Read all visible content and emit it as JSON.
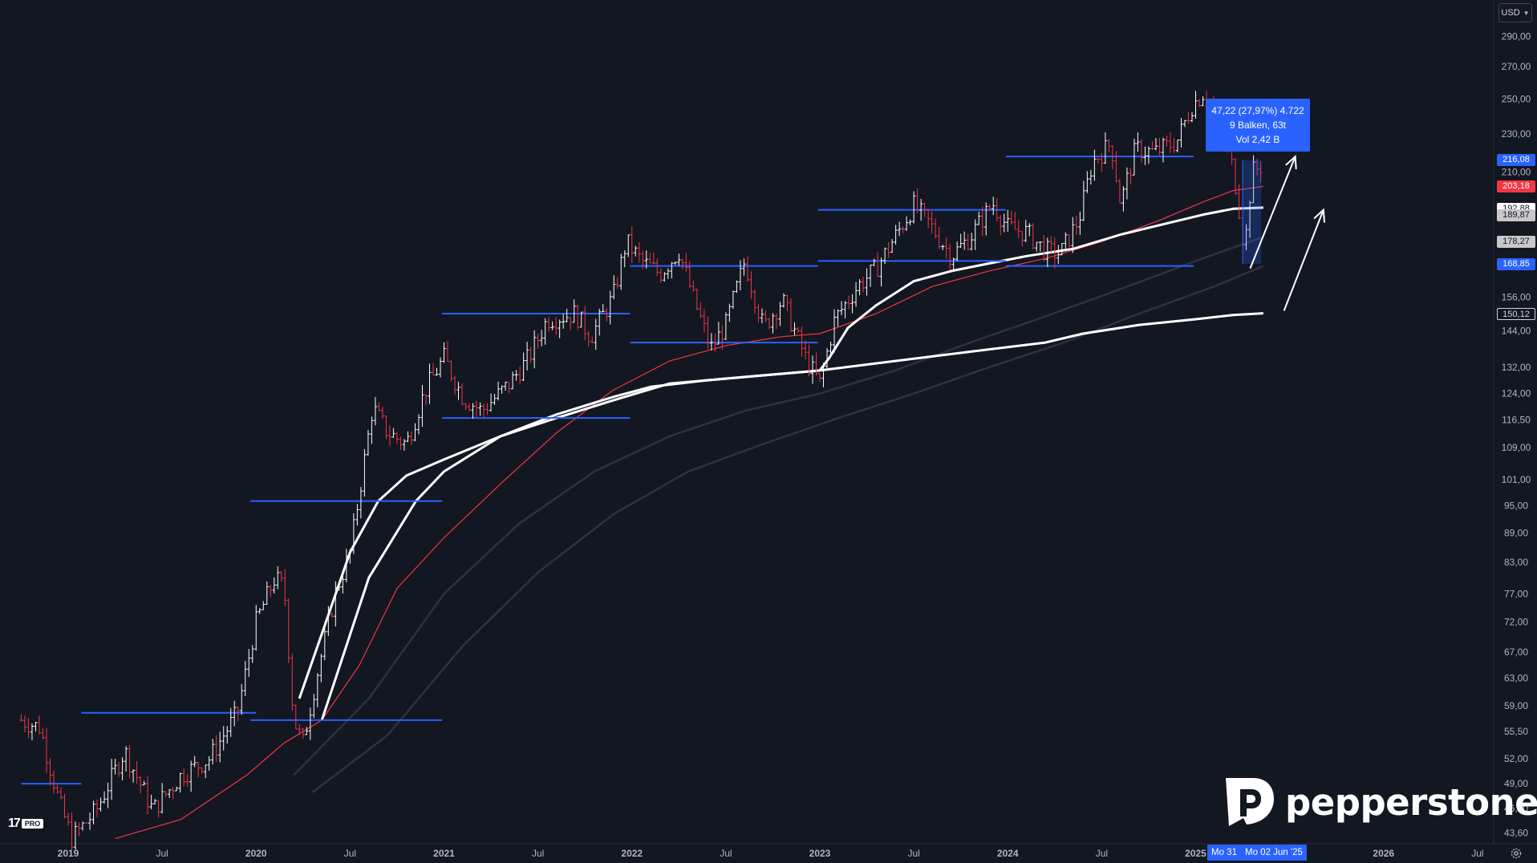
{
  "header": {
    "currency_label": "USD"
  },
  "price_tags": {
    "last": "216,08",
    "red": "203,18",
    "white1": "192,88",
    "white2": "189,87",
    "gray": "178,27",
    "blue_low": "168,85",
    "ema_long": "150,12"
  },
  "measure_box": {
    "line1": "47,22 (27,97%) 4.722",
    "line2": "9 Balken, 63t",
    "line3": "Vol 2,42 B"
  },
  "date_tags": {
    "start": "Mo 31",
    "end": "Mo 02 Jun '25"
  },
  "branding": {
    "tv_mark": "17",
    "tv_pro": "PRO",
    "brand_name": "pepperstone"
  },
  "icons": {
    "settings": "gear-icon",
    "currency_dropdown": "chevron-down-icon"
  },
  "colors": {
    "background": "#131722",
    "up_candle": "#ffffff",
    "down_candle": "#f23645",
    "levels": "#2962ff",
    "ema_red": "#f23645",
    "ema_white": "#ffffff"
  },
  "chart_data": {
    "type": "line",
    "title": "",
    "xlabel": "",
    "ylabel": "",
    "scale": "log",
    "ylim": [
      42,
      300
    ],
    "xlim": [
      2018.75,
      2026.8
    ],
    "y_ticks": [
      {
        "v": 290,
        "label": "290,00"
      },
      {
        "v": 270,
        "label": "270,00"
      },
      {
        "v": 250,
        "label": "250,00"
      },
      {
        "v": 230,
        "label": "230,00"
      },
      {
        "v": 210,
        "label": "210,00"
      },
      {
        "v": 156,
        "label": "156,00"
      },
      {
        "v": 144,
        "label": "144,00"
      },
      {
        "v": 132,
        "label": "132,00"
      },
      {
        "v": 124,
        "label": "124,00"
      },
      {
        "v": 116.5,
        "label": "116,50"
      },
      {
        "v": 109,
        "label": "109,00"
      },
      {
        "v": 101,
        "label": "101,00"
      },
      {
        "v": 95,
        "label": "95,00"
      },
      {
        "v": 89,
        "label": "89,00"
      },
      {
        "v": 83,
        "label": "83,00"
      },
      {
        "v": 77,
        "label": "77,00"
      },
      {
        "v": 72,
        "label": "72,00"
      },
      {
        "v": 67,
        "label": "67,00"
      },
      {
        "v": 63,
        "label": "63,00"
      },
      {
        "v": 59,
        "label": "59,00"
      },
      {
        "v": 55.5,
        "label": "55,50"
      },
      {
        "v": 52,
        "label": "52,00"
      },
      {
        "v": 49,
        "label": "49,00"
      },
      {
        "v": 46.2,
        "label": "46,20"
      },
      {
        "v": 43.6,
        "label": "43,60"
      }
    ],
    "x_ticks": [
      {
        "t": 2019.0,
        "label": "2019",
        "major": true
      },
      {
        "t": 2019.5,
        "label": "Jul",
        "major": false
      },
      {
        "t": 2020.0,
        "label": "2020",
        "major": true
      },
      {
        "t": 2020.5,
        "label": "Jul",
        "major": false
      },
      {
        "t": 2021.0,
        "label": "2021",
        "major": true
      },
      {
        "t": 2021.5,
        "label": "Jul",
        "major": false
      },
      {
        "t": 2022.0,
        "label": "2022",
        "major": true
      },
      {
        "t": 2022.5,
        "label": "Jul",
        "major": false
      },
      {
        "t": 2023.0,
        "label": "2023",
        "major": true
      },
      {
        "t": 2023.5,
        "label": "Jul",
        "major": false
      },
      {
        "t": 2024.0,
        "label": "2024",
        "major": true
      },
      {
        "t": 2024.5,
        "label": "Jul",
        "major": false
      },
      {
        "t": 2025.0,
        "label": "2025",
        "major": true
      },
      {
        "t": 2026.0,
        "label": "2026",
        "major": true
      },
      {
        "t": 2026.5,
        "label": "Jul",
        "major": false
      }
    ],
    "price_path": [
      [
        2018.75,
        57
      ],
      [
        2018.85,
        56
      ],
      [
        2018.95,
        47
      ],
      [
        2019.02,
        43
      ],
      [
        2019.15,
        46
      ],
      [
        2019.3,
        53
      ],
      [
        2019.45,
        46
      ],
      [
        2019.6,
        50
      ],
      [
        2019.75,
        52
      ],
      [
        2019.9,
        58
      ],
      [
        2020.0,
        72
      ],
      [
        2020.1,
        80
      ],
      [
        2020.15,
        78
      ],
      [
        2020.2,
        57
      ],
      [
        2020.25,
        54
      ],
      [
        2020.32,
        63
      ],
      [
        2020.42,
        77
      ],
      [
        2020.5,
        85
      ],
      [
        2020.55,
        98
      ],
      [
        2020.62,
        120
      ],
      [
        2020.7,
        113
      ],
      [
        2020.8,
        110
      ],
      [
        2020.9,
        125
      ],
      [
        2021.0,
        135
      ],
      [
        2021.1,
        123
      ],
      [
        2021.2,
        119
      ],
      [
        2021.35,
        127
      ],
      [
        2021.45,
        135
      ],
      [
        2021.55,
        148
      ],
      [
        2021.7,
        150
      ],
      [
        2021.78,
        142
      ],
      [
        2021.9,
        156
      ],
      [
        2021.97,
        178
      ],
      [
        2022.05,
        170
      ],
      [
        2022.15,
        165
      ],
      [
        2022.25,
        174
      ],
      [
        2022.33,
        155
      ],
      [
        2022.42,
        138
      ],
      [
        2022.5,
        146
      ],
      [
        2022.6,
        170
      ],
      [
        2022.7,
        145
      ],
      [
        2022.8,
        155
      ],
      [
        2022.93,
        134
      ],
      [
        2023.0,
        127
      ],
      [
        2023.08,
        148
      ],
      [
        2023.2,
        160
      ],
      [
        2023.3,
        167
      ],
      [
        2023.4,
        180
      ],
      [
        2023.5,
        194
      ],
      [
        2023.58,
        186
      ],
      [
        2023.7,
        172
      ],
      [
        2023.8,
        180
      ],
      [
        2023.92,
        195
      ],
      [
        2024.0,
        184
      ],
      [
        2024.1,
        182
      ],
      [
        2024.2,
        174
      ],
      [
        2024.28,
        173
      ],
      [
        2024.38,
        188
      ],
      [
        2024.45,
        215
      ],
      [
        2024.55,
        225
      ],
      [
        2024.6,
        195
      ],
      [
        2024.68,
        222
      ],
      [
        2024.78,
        220
      ],
      [
        2024.9,
        226
      ],
      [
        2024.98,
        246
      ],
      [
        2025.05,
        255
      ],
      [
        2025.1,
        240
      ],
      [
        2025.18,
        220
      ],
      [
        2025.22,
        200
      ],
      [
        2025.26,
        174
      ],
      [
        2025.3,
        210
      ],
      [
        2025.36,
        214
      ]
    ],
    "ema_white_fast": [
      [
        2020.23,
        60
      ],
      [
        2020.35,
        70
      ],
      [
        2020.5,
        85
      ],
      [
        2020.65,
        96
      ],
      [
        2020.8,
        102
      ],
      [
        2021.0,
        106
      ],
      [
        2021.3,
        112
      ],
      [
        2021.6,
        118
      ],
      [
        2021.9,
        123
      ],
      [
        2022.1,
        126
      ],
      [
        2022.4,
        128
      ],
      [
        2022.7,
        129.5
      ],
      [
        2023.0,
        131
      ],
      [
        2023.05,
        135
      ],
      [
        2023.15,
        145
      ],
      [
        2023.3,
        153
      ],
      [
        2023.5,
        162
      ],
      [
        2023.7,
        166
      ],
      [
        2023.9,
        169
      ],
      [
        2024.1,
        172
      ],
      [
        2024.35,
        175
      ],
      [
        2024.6,
        181
      ],
      [
        2024.85,
        186
      ],
      [
        2025.05,
        190
      ],
      [
        2025.2,
        192.5
      ],
      [
        2025.36,
        193
      ]
    ],
    "ema_red": [
      [
        2019.25,
        43
      ],
      [
        2019.6,
        45
      ],
      [
        2019.95,
        50
      ],
      [
        2020.15,
        54
      ],
      [
        2020.35,
        57
      ],
      [
        2020.55,
        65
      ],
      [
        2020.75,
        78
      ],
      [
        2021.0,
        88
      ],
      [
        2021.3,
        100
      ],
      [
        2021.6,
        113
      ],
      [
        2021.9,
        125
      ],
      [
        2022.2,
        134
      ],
      [
        2022.5,
        139
      ],
      [
        2022.8,
        142
      ],
      [
        2023.0,
        143
      ],
      [
        2023.3,
        150
      ],
      [
        2023.6,
        160
      ],
      [
        2023.9,
        166
      ],
      [
        2024.2,
        171
      ],
      [
        2024.5,
        178
      ],
      [
        2024.8,
        187
      ],
      [
        2025.05,
        196
      ],
      [
        2025.2,
        201
      ],
      [
        2025.36,
        203
      ]
    ],
    "ema_white_slow": [
      [
        2020.35,
        57
      ],
      [
        2020.6,
        80
      ],
      [
        2020.85,
        96
      ],
      [
        2021.0,
        103
      ],
      [
        2021.3,
        112
      ],
      [
        2021.6,
        117
      ],
      [
        2021.9,
        122
      ],
      [
        2022.2,
        127
      ],
      [
        2022.6,
        129
      ],
      [
        2023.0,
        131
      ],
      [
        2023.4,
        134
      ],
      [
        2023.8,
        137
      ],
      [
        2024.2,
        140
      ],
      [
        2024.4,
        143
      ],
      [
        2024.7,
        146
      ],
      [
        2025.0,
        148
      ],
      [
        2025.2,
        149.5
      ],
      [
        2025.36,
        150.1
      ]
    ],
    "ema_gray1": [
      [
        2020.2,
        50
      ],
      [
        2020.6,
        60
      ],
      [
        2021.0,
        77
      ],
      [
        2021.4,
        91
      ],
      [
        2021.8,
        103
      ],
      [
        2022.2,
        112
      ],
      [
        2022.6,
        119
      ],
      [
        2023.0,
        124
      ],
      [
        2023.4,
        131
      ],
      [
        2023.8,
        140
      ],
      [
        2024.2,
        149
      ],
      [
        2024.6,
        159
      ],
      [
        2025.0,
        170
      ],
      [
        2025.36,
        180
      ]
    ],
    "ema_gray2": [
      [
        2020.3,
        48
      ],
      [
        2020.7,
        55
      ],
      [
        2021.1,
        68
      ],
      [
        2021.5,
        81
      ],
      [
        2021.9,
        93
      ],
      [
        2022.3,
        103
      ],
      [
        2022.7,
        110
      ],
      [
        2023.1,
        117
      ],
      [
        2023.5,
        124
      ],
      [
        2023.9,
        132
      ],
      [
        2024.3,
        140
      ],
      [
        2024.7,
        150
      ],
      [
        2025.1,
        160
      ],
      [
        2025.36,
        168
      ]
    ],
    "level_lines": [
      {
        "y": 49,
        "x0": 2018.75,
        "x1": 2019.07
      },
      {
        "y": 58,
        "x0": 2019.07,
        "x1": 2020.0
      },
      {
        "y": 57,
        "x0": 2019.97,
        "x1": 2020.99
      },
      {
        "y": 96,
        "x0": 2019.97,
        "x1": 2020.99
      },
      {
        "y": 117,
        "x0": 2020.99,
        "x1": 2021.99
      },
      {
        "y": 150,
        "x0": 2020.99,
        "x1": 2021.99
      },
      {
        "y": 140,
        "x0": 2021.99,
        "x1": 2022.99
      },
      {
        "y": 168,
        "x0": 2021.99,
        "x1": 2022.99
      },
      {
        "y": 192,
        "x0": 2022.99,
        "x1": 2023.99
      },
      {
        "y": 170,
        "x0": 2022.99,
        "x1": 2023.99
      },
      {
        "y": 218,
        "x0": 2023.99,
        "x1": 2024.99
      },
      {
        "y": 168,
        "x0": 2023.99,
        "x1": 2024.99
      }
    ],
    "arrows": [
      {
        "from": [
          2025.29,
          167
        ],
        "to": [
          2025.53,
          218
        ]
      },
      {
        "from": [
          2025.47,
          151
        ],
        "to": [
          2025.68,
          192
        ]
      }
    ]
  }
}
